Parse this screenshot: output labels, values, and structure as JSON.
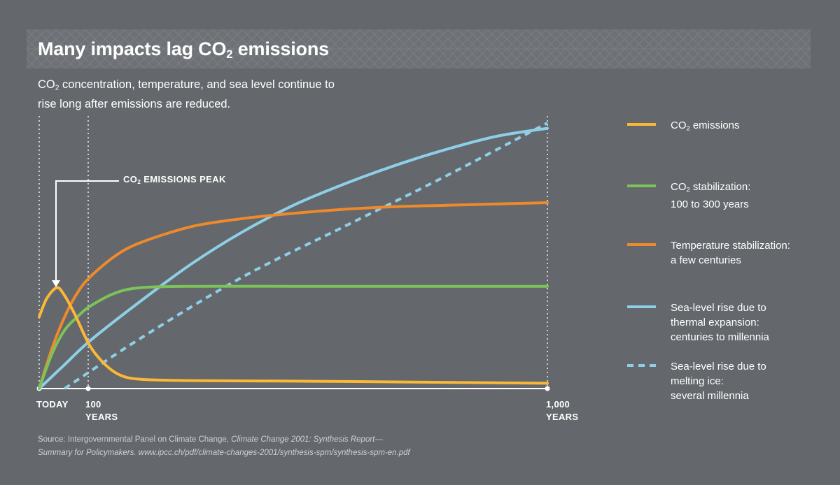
{
  "title": {
    "main": "Many impacts lag CO",
    "sub": "2",
    "tail": " emissions"
  },
  "subtitle": {
    "pre": "CO",
    "sub": "2",
    "rest1": " concentration, temperature, and sea level continue to",
    "rest2": "rise long after emissions are reduced."
  },
  "annotation": {
    "pre": "CO",
    "sub": "2",
    "rest": " EMISSIONS PEAK"
  },
  "source": {
    "prefix": "Source: Intergovernmental Panel on Climate Change, ",
    "italic1": "Climate Change 2001: Synthesis Report—",
    "italic2": "Summary for Policymakers. www.ipcc.ch/pdf/climate-changes-2001/synthesis-spm/synthesis-spm-en.pdf"
  },
  "colors": {
    "background": "#64676b",
    "co2": "#fbb836",
    "stabilization": "#7cc35a",
    "temperature": "#ee8a2b",
    "sea_thermal": "#8ecfe8",
    "sea_ice": "#8ecfe8"
  },
  "legend": [
    {
      "id": "co2",
      "pre": "CO",
      "sub": "2",
      "rest": " emissions",
      "line2": ""
    },
    {
      "id": "stabilization",
      "pre": "CO",
      "sub": "2",
      "rest": " stabilization:",
      "line2": "100 to 300 years"
    },
    {
      "id": "temperature",
      "pre": "",
      "sub": "",
      "rest": "Temperature stabilization:",
      "line2": "a few centuries"
    },
    {
      "id": "sea_thermal",
      "pre": "",
      "sub": "",
      "rest": "Sea-level rise due to",
      "line2": "thermal expansion:",
      "line3": "centuries to millennia"
    },
    {
      "id": "sea_ice",
      "pre": "",
      "sub": "",
      "rest": "Sea-level rise due to",
      "line2": "melting ice:",
      "line3": "several millennia"
    }
  ],
  "chart_data": {
    "type": "line",
    "xlabel": "",
    "ylabel": "",
    "x_axis_marks": [
      {
        "x": 0,
        "label": "TODAY",
        "label2": ""
      },
      {
        "x": 100,
        "label": "100",
        "label2": "YEARS"
      },
      {
        "x": 1000,
        "label": "1,000",
        "label2": "YEARS"
      }
    ],
    "xlim": [
      0,
      1000
    ],
    "ylim": [
      0,
      1
    ],
    "series": [
      {
        "id": "sea_thermal",
        "style": "solid",
        "x": [
          0,
          50,
          100,
          200,
          300,
          400,
          500,
          600,
          700,
          800,
          900,
          1000
        ],
        "y": [
          0.0,
          0.09,
          0.18,
          0.33,
          0.47,
          0.59,
          0.69,
          0.77,
          0.84,
          0.9,
          0.95,
          0.98
        ]
      },
      {
        "id": "sea_ice",
        "style": "dashed",
        "x": [
          50,
          200,
          400,
          600,
          800,
          1000
        ],
        "y": [
          0.0,
          0.19,
          0.42,
          0.61,
          0.8,
          1.0
        ]
      },
      {
        "id": "temperature",
        "style": "solid",
        "x": [
          0,
          25,
          50,
          75,
          100,
          150,
          200,
          300,
          400,
          500,
          600,
          700,
          800,
          900,
          1000
        ],
        "y": [
          0.0,
          0.15,
          0.27,
          0.36,
          0.42,
          0.5,
          0.55,
          0.61,
          0.64,
          0.66,
          0.675,
          0.685,
          0.69,
          0.695,
          0.7
        ]
      },
      {
        "id": "stabilization",
        "style": "solid",
        "x": [
          0,
          25,
          50,
          75,
          100,
          150,
          200,
          300,
          500,
          700,
          1000
        ],
        "y": [
          0.0,
          0.13,
          0.22,
          0.27,
          0.31,
          0.36,
          0.38,
          0.385,
          0.385,
          0.385,
          0.385
        ]
      },
      {
        "id": "co2",
        "style": "solid",
        "x": [
          0,
          15,
          35,
          50,
          70,
          100,
          130,
          160,
          200,
          300,
          500,
          700,
          1000
        ],
        "y": [
          0.27,
          0.34,
          0.38,
          0.35,
          0.28,
          0.16,
          0.09,
          0.05,
          0.035,
          0.03,
          0.028,
          0.025,
          0.02
        ]
      }
    ]
  }
}
